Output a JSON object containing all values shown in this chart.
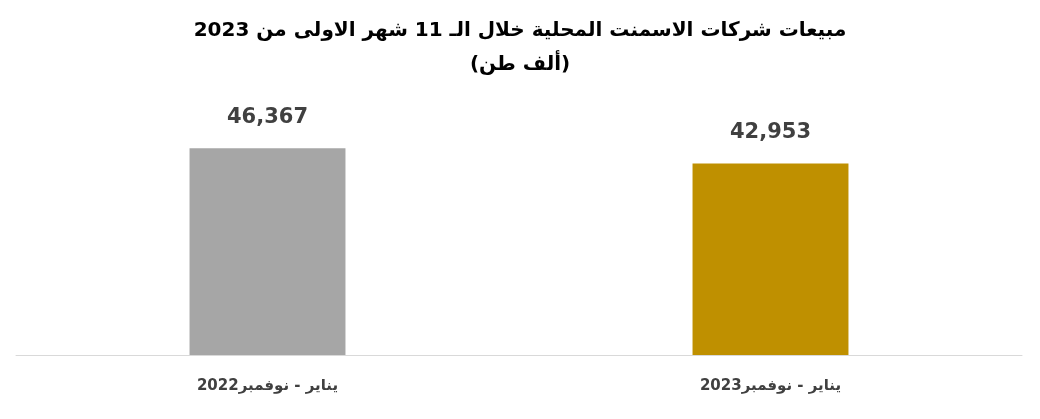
{
  "chart_data": {
    "type": "bar",
    "title": "مبيعات شركات الاسمنت المحلية خلال الـ 11 شهر الاولى من 2023",
    "subtitle": "(ألف طن)",
    "categories": [
      "يناير - نوفمبر2022",
      "يناير - نوفمبر2023"
    ],
    "values": [
      46367,
      42953
    ],
    "value_labels": [
      "46,367",
      "42,953"
    ],
    "colors": [
      "#a6a6a6",
      "#bf9000"
    ],
    "tick_labels": "x"
  }
}
